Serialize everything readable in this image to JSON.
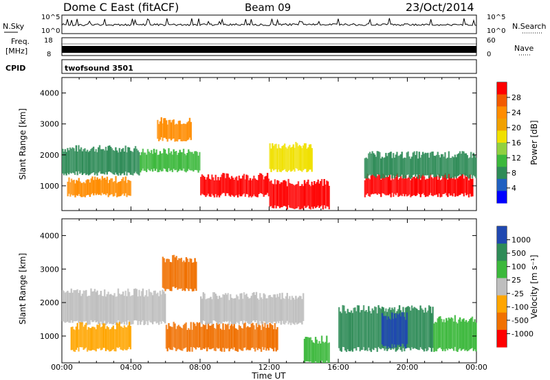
{
  "header": {
    "station": "Dome C East (fitACF)",
    "beam": "Beam 09",
    "date": "23/Oct/2014"
  },
  "strips": {
    "nsky_label": "N.Sky",
    "nsky_ticks": [
      "10^5",
      "10^0"
    ],
    "nsearch_label": "N.Search",
    "nsearch_ticks": [
      "10^5",
      "10^0"
    ],
    "freq_label_line1": "Freq.",
    "freq_label_line2": "[MHz]",
    "freq_ticks": [
      "18",
      "8"
    ],
    "nave_label": "Nave",
    "nave_ticks": [
      "60",
      "0"
    ],
    "cpid_label": "CPID",
    "cpid_value": "twofsound 3501"
  },
  "power_colorbar": {
    "label": "Power [dB]",
    "ticks": [
      "28",
      "24",
      "20",
      "16",
      "12",
      "8",
      "4"
    ],
    "colors": [
      "#ff0000",
      "#f25a00",
      "#ff8c00",
      "#f0a000",
      "#f0e000",
      "#90d040",
      "#3cb83c",
      "#2e8b57",
      "#2060c0",
      "#0000ff"
    ]
  },
  "velocity_colorbar": {
    "label": "Velocity [m s⁻¹]",
    "ticks": [
      "1000",
      "500",
      "100",
      "25",
      "-25",
      "-100",
      "-500",
      "-1000"
    ],
    "colors": [
      "#2048b0",
      "#2e8b57",
      "#3cb83c",
      "#bebebe",
      "#ffa500",
      "#f07000",
      "#ff0000"
    ]
  },
  "chart_data": [
    {
      "type": "heatmap",
      "title": "",
      "ylabel": "Slant Range [km]",
      "xlabel": "",
      "ylim": [
        200,
        4500
      ],
      "xlim": [
        "00:00",
        "24:00"
      ],
      "yticks": [
        "4000",
        "3000",
        "2000",
        "1000"
      ],
      "colorbar_label": "Power [dB]",
      "bands": [
        {
          "t0": 0.0,
          "t1": 4.5,
          "r0": 1400,
          "r1": 2200,
          "color": "#2e8b57"
        },
        {
          "t0": 0.3,
          "t1": 4.0,
          "r0": 700,
          "r1": 1200,
          "color": "#ff8c00"
        },
        {
          "t0": 4.5,
          "t1": 8.0,
          "r0": 1500,
          "r1": 2100,
          "color": "#3cb83c"
        },
        {
          "t0": 5.5,
          "t1": 7.5,
          "r0": 2500,
          "r1": 3100,
          "color": "#ff8c00"
        },
        {
          "t0": 8.0,
          "t1": 12.0,
          "r0": 700,
          "r1": 1300,
          "color": "#ff0000"
        },
        {
          "t0": 12.0,
          "t1": 15.5,
          "r0": 300,
          "r1": 1100,
          "color": "#ff0000"
        },
        {
          "t0": 12.0,
          "t1": 14.5,
          "r0": 1500,
          "r1": 2300,
          "color": "#f0e000"
        },
        {
          "t0": 17.5,
          "t1": 23.8,
          "r0": 700,
          "r1": 1300,
          "color": "#ff0000"
        },
        {
          "t0": 17.5,
          "t1": 24.0,
          "r0": 1300,
          "r1": 2000,
          "color": "#2e8b57"
        }
      ]
    },
    {
      "type": "heatmap",
      "title": "",
      "ylabel": "Slant Range [km]",
      "xlabel": "Time UT",
      "ylim": [
        200,
        4500
      ],
      "xlim": [
        "00:00",
        "24:00"
      ],
      "xticks": [
        "00:00",
        "04:00",
        "08:00",
        "12:00",
        "16:00",
        "20:00",
        "00:00"
      ],
      "yticks": [
        "4000",
        "3000",
        "2000",
        "1000"
      ],
      "colorbar_label": "Velocity [m s⁻¹]",
      "bands": [
        {
          "t0": 0.0,
          "t1": 6.0,
          "r0": 1400,
          "r1": 2300,
          "color": "#bebebe"
        },
        {
          "t0": 0.5,
          "t1": 4.0,
          "r0": 600,
          "r1": 1300,
          "color": "#ffa500"
        },
        {
          "t0": 5.8,
          "t1": 7.8,
          "r0": 2400,
          "r1": 3300,
          "color": "#f07000"
        },
        {
          "t0": 6.0,
          "t1": 12.5,
          "r0": 600,
          "r1": 1300,
          "color": "#f07000"
        },
        {
          "t0": 8.0,
          "t1": 14.0,
          "r0": 1400,
          "r1": 2200,
          "color": "#bebebe"
        },
        {
          "t0": 14.0,
          "t1": 15.5,
          "r0": 200,
          "r1": 900,
          "color": "#3cb83c"
        },
        {
          "t0": 16.0,
          "t1": 21.5,
          "r0": 600,
          "r1": 1800,
          "color": "#2e8b57"
        },
        {
          "t0": 18.5,
          "t1": 20.0,
          "r0": 700,
          "r1": 1600,
          "color": "#2048b0"
        },
        {
          "t0": 21.5,
          "t1": 24.0,
          "r0": 600,
          "r1": 1500,
          "color": "#3cb83c"
        }
      ]
    }
  ]
}
